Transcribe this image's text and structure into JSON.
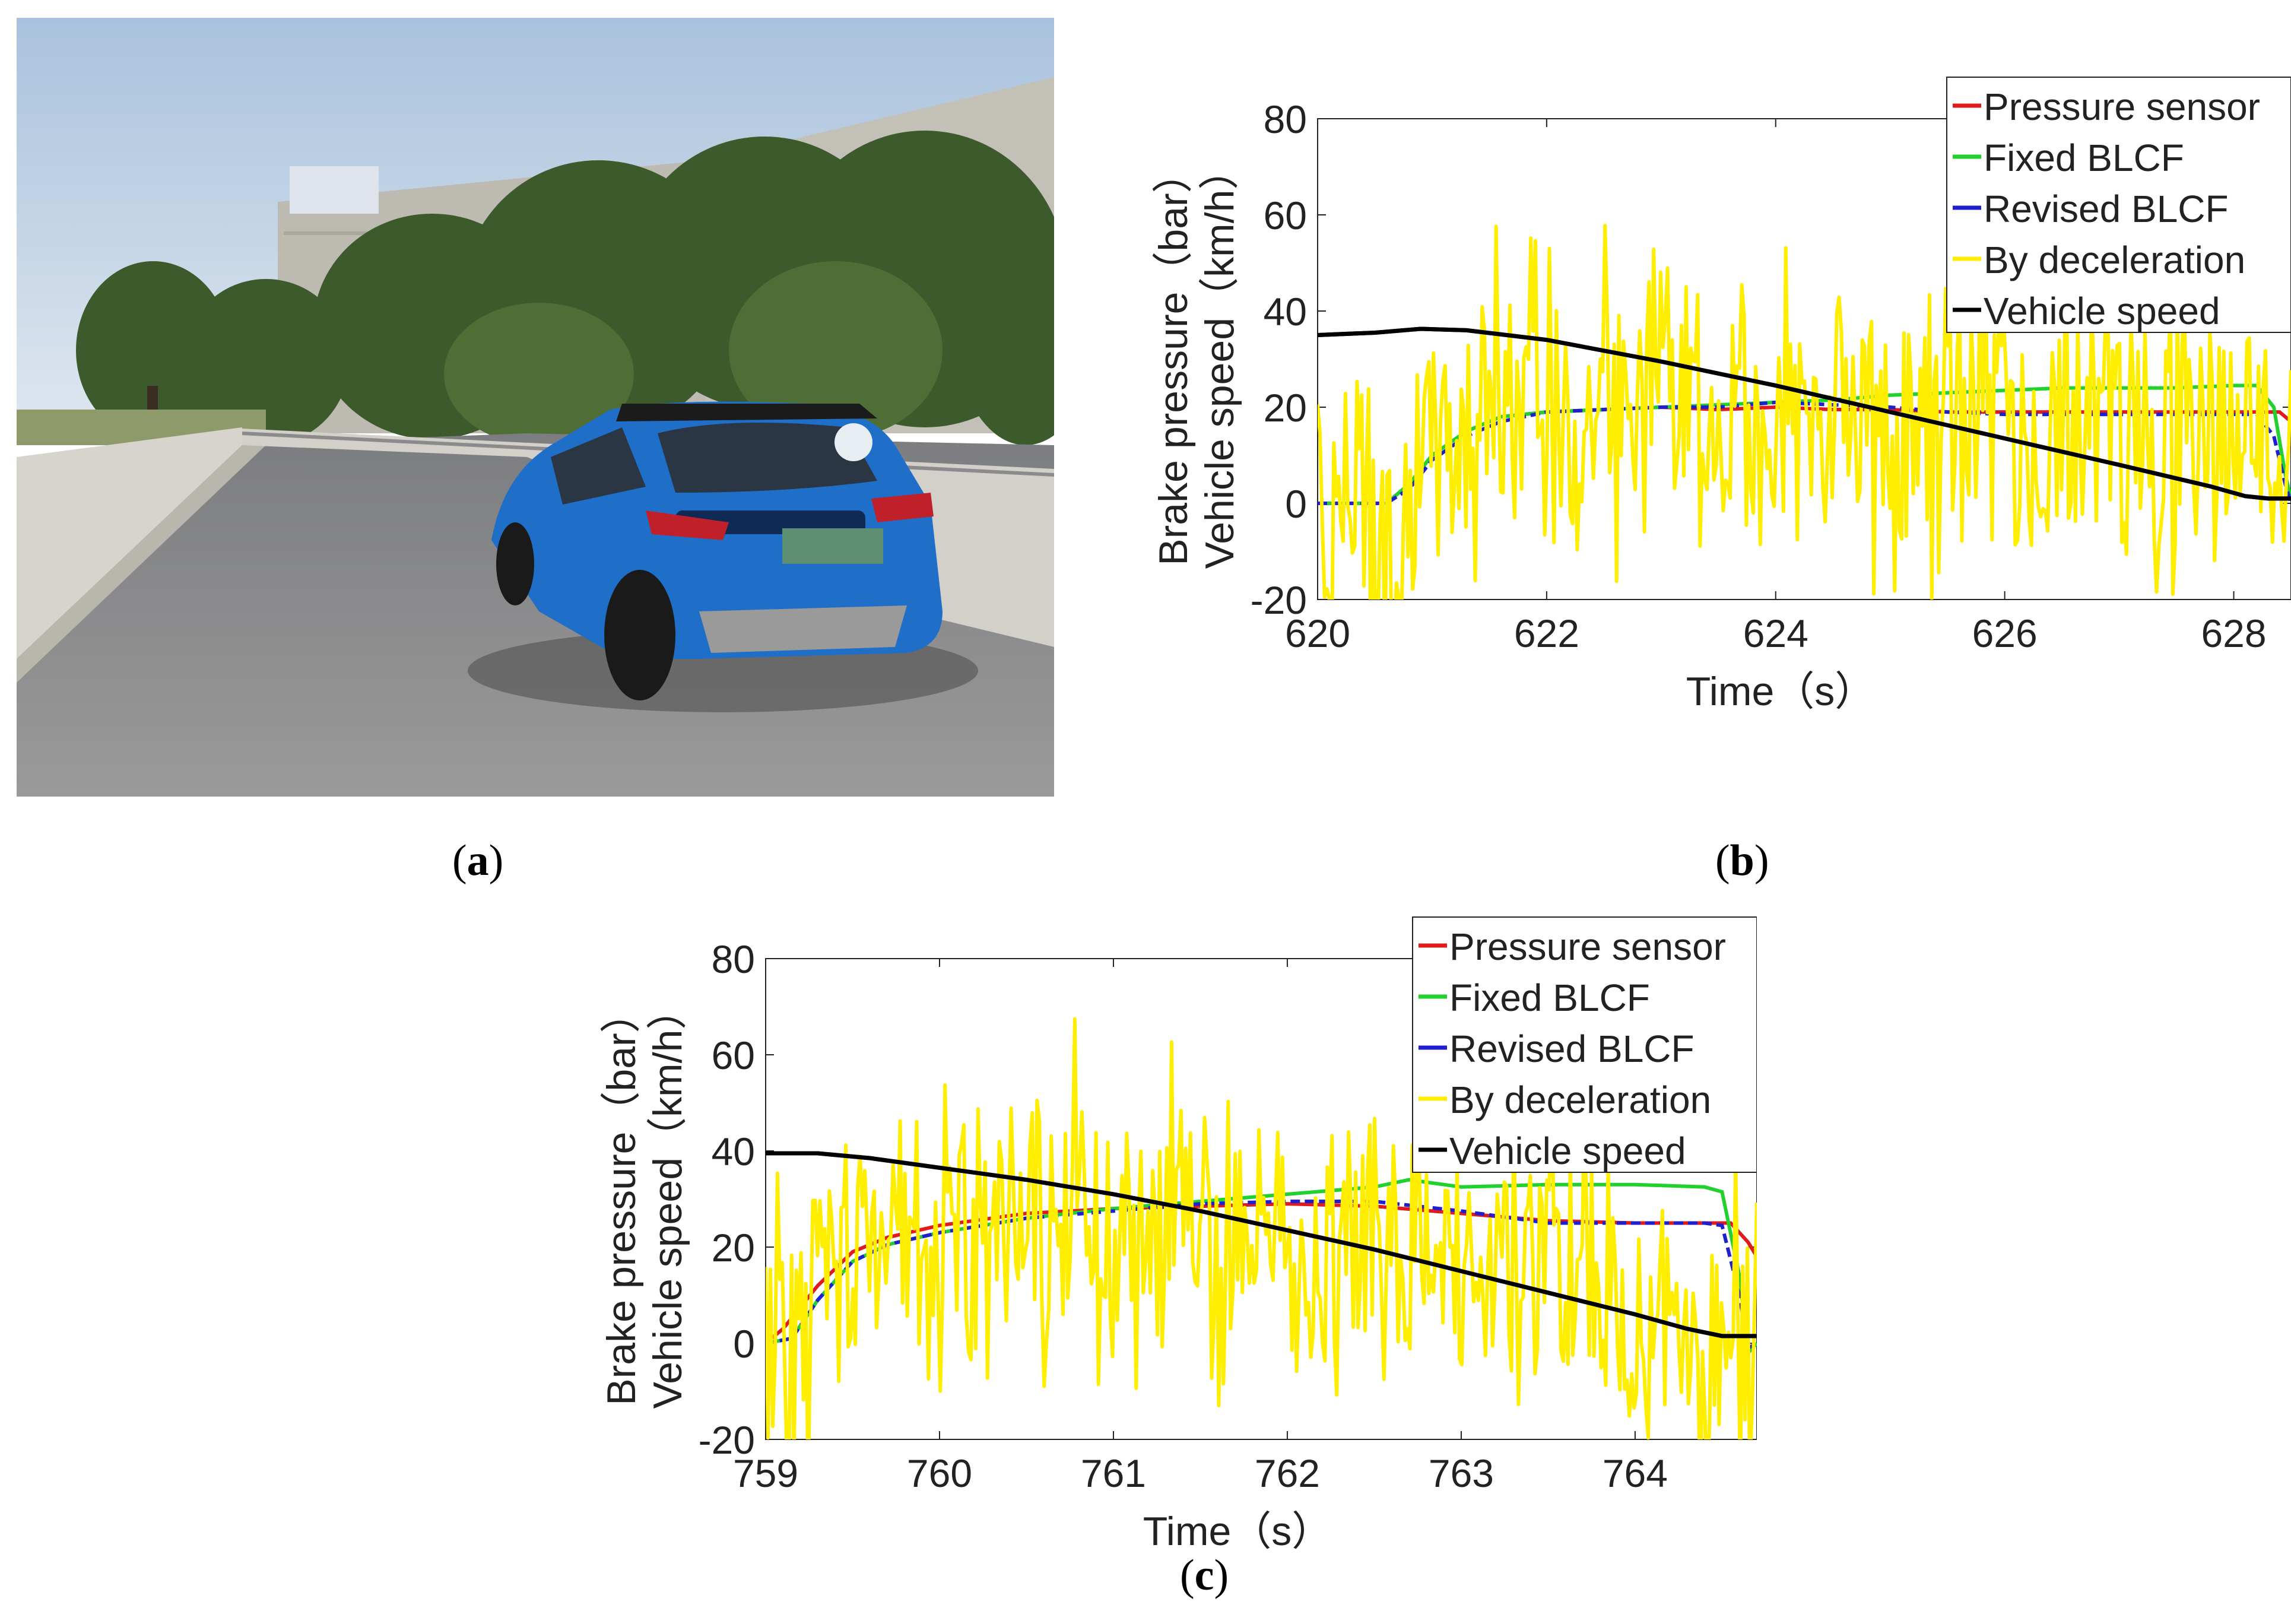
{
  "panels": {
    "a": {
      "open": "(",
      "letter": "a",
      "close": ")"
    },
    "b": {
      "open": "(",
      "letter": "b",
      "close": ")"
    },
    "c": {
      "open": "(",
      "letter": "c",
      "close": ")"
    }
  },
  "photo": {
    "subject": "blue-suv-on-test-ramp",
    "colors": {
      "sky": "#c9d8ea",
      "car": "#1f6fc8",
      "road": "#8e8f90",
      "wall": "#c8c6bf",
      "trees": "#3c5a2a"
    }
  },
  "chart_data": [
    {
      "id": "b",
      "type": "line",
      "xlabel": "Time（s）",
      "ylabel_line1": "Brake pressure（bar）",
      "ylabel_line2": "Vehicle speed（km/h）",
      "xlim": [
        620,
        628.5
      ],
      "ylim": [
        -20,
        80
      ],
      "xticks": [
        620,
        622,
        624,
        626,
        628
      ],
      "yticks": [
        -20,
        0,
        20,
        40,
        60,
        80
      ],
      "legend_position": "top-right",
      "series": [
        {
          "name": "Pressure sensor",
          "color": "#e01b1b",
          "x": [
            620,
            620.6,
            620.8,
            621.0,
            621.3,
            621.6,
            622.0,
            622.5,
            623.0,
            623.5,
            624.0,
            624.5,
            625.0,
            625.5,
            626.0,
            626.5,
            627.0,
            627.5,
            628.0,
            628.2,
            628.4,
            628.5
          ],
          "y": [
            0,
            0,
            4,
            10,
            15,
            18,
            19,
            19.5,
            20,
            19.5,
            20,
            19.5,
            19.5,
            19,
            19,
            19,
            19,
            19,
            19,
            19,
            19,
            17
          ]
        },
        {
          "name": "Fixed BLCF",
          "color": "#22d12e",
          "x": [
            620,
            620.6,
            620.8,
            621.0,
            621.3,
            621.6,
            622.0,
            622.5,
            623.0,
            623.5,
            624.0,
            624.5,
            625.0,
            625.5,
            626.0,
            626.5,
            627.0,
            627.5,
            628.0,
            628.2,
            628.35,
            628.45,
            628.5
          ],
          "y": [
            0,
            0,
            4,
            10,
            15,
            18,
            19,
            19.5,
            20,
            20.5,
            21,
            21.5,
            22.5,
            23,
            23.5,
            24,
            24,
            24,
            24.5,
            24.5,
            20,
            6,
            1
          ]
        },
        {
          "name": "Revised BLCF",
          "color": "#1f1fd0",
          "x": [
            620,
            620.6,
            620.8,
            621.0,
            621.3,
            621.6,
            622.0,
            622.5,
            623.0,
            623.5,
            624.0,
            624.5,
            625.0,
            625.5,
            626.0,
            626.5,
            627.0,
            627.5,
            628.0,
            628.2,
            628.35,
            628.45,
            628.5
          ],
          "y": [
            0,
            0,
            3,
            9,
            14,
            17,
            19,
            19.5,
            20,
            20,
            21,
            20.5,
            20,
            19,
            18.5,
            18.5,
            18.5,
            18.5,
            18.5,
            18.5,
            14,
            4,
            0
          ]
        },
        {
          "name": "By deceleration",
          "color": "#ffee00",
          "style": "noisy",
          "x": [
            620,
            620.3,
            620.6,
            620.9,
            621.2,
            621.5,
            621.8,
            622.1,
            622.4,
            622.7,
            623.0,
            623.3,
            623.6,
            623.9,
            624.2,
            624.5,
            624.8,
            625.1,
            625.4,
            625.7,
            626.0,
            626.3,
            626.6,
            626.9,
            627.2,
            627.5,
            627.8,
            628.1,
            628.4,
            628.5
          ],
          "y": [
            -5,
            3,
            -12,
            8,
            15,
            20,
            18,
            14,
            22,
            16,
            25,
            18,
            20,
            12,
            17,
            19,
            15,
            16,
            14,
            18,
            16,
            15,
            17,
            13,
            16,
            15,
            14,
            18,
            12,
            15
          ]
        },
        {
          "name": "Vehicle speed",
          "color": "#000000",
          "x": [
            620,
            620.5,
            620.9,
            621.3,
            622.0,
            623.0,
            624.0,
            625.0,
            626.0,
            627.0,
            627.8,
            628.1,
            628.3,
            628.5
          ],
          "y": [
            35,
            35.5,
            36.3,
            36,
            34,
            29.5,
            24.5,
            19,
            13.5,
            8,
            3.5,
            1.5,
            1,
            1
          ]
        }
      ]
    },
    {
      "id": "c",
      "type": "line",
      "xlabel": "Time（s）",
      "ylabel_line1": "Brake pressure（bar）",
      "ylabel_line2": "Vehicle speed（km/h）",
      "xlim": [
        759,
        764.7
      ],
      "ylim": [
        -20,
        80
      ],
      "xticks": [
        759,
        760,
        761,
        762,
        763,
        764
      ],
      "yticks": [
        -20,
        0,
        20,
        40,
        60,
        80
      ],
      "legend_position": "top-right",
      "series": [
        {
          "name": "Pressure sensor",
          "color": "#e01b1b",
          "x": [
            759,
            759.1,
            759.3,
            759.5,
            759.7,
            760.0,
            760.5,
            761.0,
            761.5,
            762.0,
            762.5,
            763.0,
            763.5,
            764.0,
            764.4,
            764.55,
            764.65,
            764.7
          ],
          "y": [
            0,
            3,
            12,
            19,
            22,
            24.5,
            27,
            28,
            28.5,
            29,
            28.5,
            27,
            25.5,
            25,
            25,
            25,
            21,
            18
          ]
        },
        {
          "name": "Fixed BLCF",
          "color": "#22d12e",
          "x": [
            759,
            759.15,
            759.3,
            759.5,
            759.7,
            760.0,
            760.5,
            761.0,
            761.5,
            762.0,
            762.5,
            762.7,
            763.0,
            763.5,
            764.0,
            764.4,
            764.5,
            764.6,
            764.65,
            764.7
          ],
          "y": [
            0,
            1,
            9,
            17,
            20.5,
            23,
            26,
            28,
            29.5,
            31,
            32.5,
            34,
            32.5,
            33,
            33,
            32.5,
            31.5,
            14,
            -2,
            0
          ]
        },
        {
          "name": "Revised BLCF",
          "color": "#1f1fd0",
          "x": [
            759,
            759.15,
            759.3,
            759.5,
            759.7,
            760.0,
            760.5,
            761.0,
            761.5,
            762.0,
            762.5,
            763.0,
            763.5,
            764.0,
            764.4,
            764.5,
            764.6,
            764.65,
            764.7
          ],
          "y": [
            0,
            1,
            9,
            17,
            20.5,
            23,
            26,
            27.5,
            29,
            29.5,
            29.5,
            27.5,
            25,
            25,
            25,
            24.5,
            10,
            -1,
            0
          ]
        },
        {
          "name": "By deceleration",
          "color": "#ffee00",
          "style": "noisy",
          "x": [
            759,
            759.2,
            759.4,
            759.6,
            759.8,
            760.0,
            760.2,
            760.4,
            760.6,
            760.8,
            761.0,
            761.2,
            761.4,
            761.6,
            761.8,
            762.0,
            762.2,
            762.4,
            762.6,
            762.8,
            763.0,
            763.2,
            763.4,
            763.6,
            763.8,
            764.0,
            764.2,
            764.4,
            764.6,
            764.7
          ],
          "y": [
            -5,
            2,
            10,
            18,
            20,
            24,
            26,
            28,
            25,
            30,
            22,
            26,
            24,
            21,
            23,
            20,
            22,
            25,
            19,
            21,
            18,
            20,
            22,
            15,
            12,
            5,
            2,
            1,
            0,
            0
          ]
        },
        {
          "name": "Vehicle speed",
          "color": "#000000",
          "x": [
            759,
            759.3,
            759.6,
            760.0,
            760.5,
            761.0,
            761.5,
            762.0,
            762.5,
            763.0,
            763.5,
            764.0,
            764.3,
            764.5,
            764.7
          ],
          "y": [
            39.5,
            39.5,
            38.5,
            36.5,
            34,
            31,
            27.5,
            23.5,
            19.5,
            15,
            10.5,
            6,
            3,
            1.5,
            1.5
          ]
        }
      ]
    }
  ]
}
